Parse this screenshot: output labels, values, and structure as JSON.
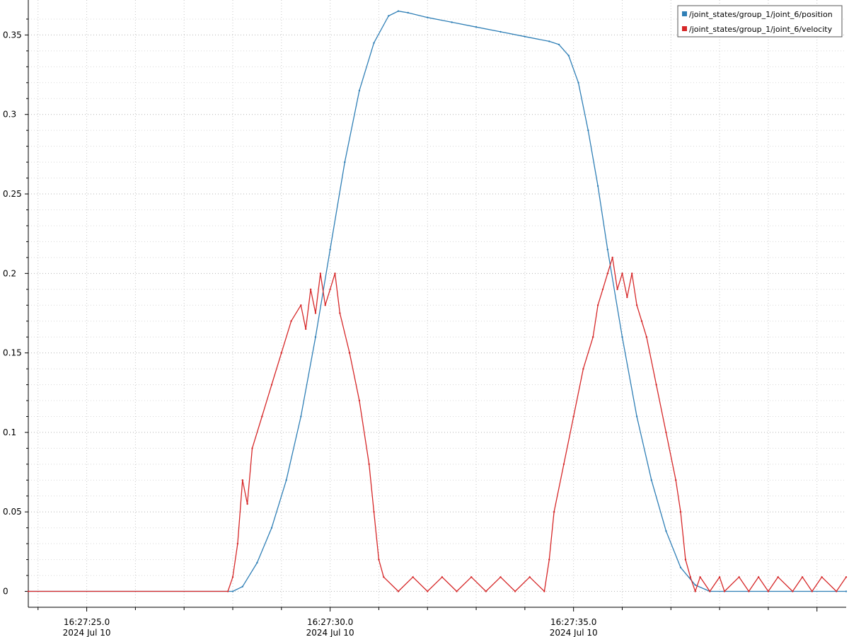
{
  "chart_data": {
    "type": "line",
    "title": "",
    "xlabel": "",
    "ylabel": "",
    "grid": true,
    "legend_position": "top-right",
    "x_unit": "seconds",
    "xlim": [
      23.8,
      40.6
    ],
    "ylim": [
      -0.01,
      0.372
    ],
    "y_ticks": [
      {
        "value": 0,
        "label": "0"
      },
      {
        "value": 0.05,
        "label": "0.05"
      },
      {
        "value": 0.1,
        "label": "0.1"
      },
      {
        "value": 0.15,
        "label": "0.15"
      },
      {
        "value": 0.2,
        "label": "0.2"
      },
      {
        "value": 0.25,
        "label": "0.25"
      },
      {
        "value": 0.3,
        "label": "0.3"
      },
      {
        "value": 0.35,
        "label": "0.35"
      }
    ],
    "x_ticks": [
      {
        "value": 25,
        "time": "16:27:25.0",
        "date": "2024 Jul 10"
      },
      {
        "value": 30,
        "time": "16:27:30.0",
        "date": "2024 Jul 10"
      },
      {
        "value": 35,
        "time": "16:27:35.0",
        "date": "2024 Jul 10"
      }
    ],
    "series": [
      {
        "name": "/joint_states/group_1/joint_6/position",
        "color": "#2f7fb6",
        "x": [
          23.8,
          28.0,
          28.2,
          28.5,
          28.8,
          29.1,
          29.4,
          29.7,
          30.0,
          30.3,
          30.6,
          30.9,
          31.2,
          31.4,
          31.6,
          32.0,
          32.5,
          33.0,
          33.5,
          34.0,
          34.5,
          34.7,
          34.9,
          35.1,
          35.3,
          35.5,
          35.7,
          36.0,
          36.3,
          36.6,
          36.9,
          37.2,
          37.5,
          37.8,
          40.6
        ],
        "y": [
          0,
          0,
          0.003,
          0.018,
          0.04,
          0.07,
          0.11,
          0.16,
          0.215,
          0.27,
          0.315,
          0.345,
          0.362,
          0.365,
          0.364,
          0.361,
          0.358,
          0.355,
          0.352,
          0.349,
          0.346,
          0.344,
          0.337,
          0.32,
          0.29,
          0.255,
          0.215,
          0.16,
          0.11,
          0.07,
          0.038,
          0.015,
          0.004,
          0,
          0
        ]
      },
      {
        "name": "/joint_states/group_1/joint_6/velocity",
        "color": "#d62728",
        "x": [
          23.8,
          27.9,
          28.0,
          28.1,
          28.2,
          28.3,
          28.4,
          28.6,
          28.8,
          29.0,
          29.2,
          29.4,
          29.5,
          29.6,
          29.7,
          29.8,
          29.9,
          30.0,
          30.1,
          30.2,
          30.4,
          30.6,
          30.8,
          30.9,
          31.0,
          31.1,
          31.4,
          31.7,
          32.0,
          32.3,
          32.6,
          32.9,
          33.2,
          33.5,
          33.8,
          34.1,
          34.4,
          34.5,
          34.6,
          34.8,
          35.0,
          35.2,
          35.4,
          35.5,
          35.6,
          35.7,
          35.8,
          35.9,
          36.0,
          36.1,
          36.2,
          36.3,
          36.4,
          36.5,
          36.7,
          36.9,
          37.1,
          37.2,
          37.3,
          37.4,
          37.5,
          37.6,
          37.8,
          38.0,
          38.1,
          38.4,
          38.6,
          38.8,
          39.0,
          39.2,
          39.5,
          39.7,
          39.9,
          40.1,
          40.4,
          40.6
        ],
        "y": [
          0,
          0,
          0.009,
          0.03,
          0.07,
          0.055,
          0.09,
          0.11,
          0.13,
          0.15,
          0.17,
          0.18,
          0.165,
          0.19,
          0.175,
          0.2,
          0.18,
          0.19,
          0.2,
          0.175,
          0.15,
          0.12,
          0.08,
          0.05,
          0.02,
          0.009,
          0,
          0.009,
          0,
          0.009,
          0,
          0.009,
          0,
          0.009,
          0,
          0.009,
          0,
          0.02,
          0.05,
          0.08,
          0.11,
          0.14,
          0.16,
          0.18,
          0.19,
          0.2,
          0.21,
          0.19,
          0.2,
          0.185,
          0.2,
          0.18,
          0.17,
          0.16,
          0.13,
          0.1,
          0.07,
          0.05,
          0.02,
          0.009,
          0,
          0.009,
          0,
          0.009,
          0,
          0.009,
          0,
          0.009,
          0,
          0.009,
          0,
          0.009,
          0,
          0.009,
          0,
          0.009
        ]
      }
    ]
  }
}
